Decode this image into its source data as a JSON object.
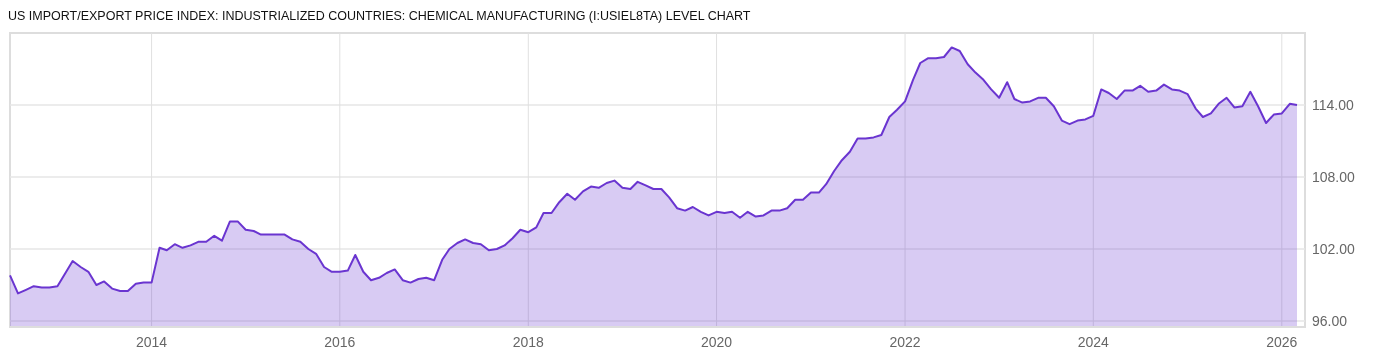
{
  "chart_data": {
    "type": "area",
    "title": "US IMPORT/EXPORT PRICE INDEX: INDUSTRIALIZED COUNTRIES: CHEMICAL MANUFACTURING (I:USIEL8TA) LEVEL CHART",
    "x": [
      "2012-07",
      "2012-08",
      "2012-09",
      "2012-10",
      "2012-11",
      "2012-12",
      "2013-01",
      "2013-02",
      "2013-03",
      "2013-04",
      "2013-05",
      "2013-06",
      "2013-07",
      "2013-08",
      "2013-09",
      "2013-10",
      "2013-11",
      "2013-12",
      "2014-01",
      "2014-02",
      "2014-03",
      "2014-04",
      "2014-05",
      "2014-06",
      "2014-07",
      "2014-08",
      "2014-09",
      "2014-10",
      "2014-11",
      "2014-12",
      "2015-01",
      "2015-02",
      "2015-03",
      "2015-04",
      "2015-05",
      "2015-06",
      "2015-07",
      "2015-08",
      "2015-09",
      "2015-10",
      "2015-11",
      "2015-12",
      "2016-01",
      "2016-02",
      "2016-03",
      "2016-04",
      "2016-05",
      "2016-06",
      "2016-07",
      "2016-08",
      "2016-09",
      "2016-10",
      "2016-11",
      "2016-12",
      "2017-01",
      "2017-02",
      "2017-03",
      "2017-04",
      "2017-05",
      "2017-06",
      "2017-07",
      "2017-08",
      "2017-09",
      "2017-10",
      "2017-11",
      "2017-12",
      "2018-01",
      "2018-02",
      "2018-03",
      "2018-04",
      "2018-05",
      "2018-06",
      "2018-07",
      "2018-08",
      "2018-09",
      "2018-10",
      "2018-11",
      "2018-12",
      "2019-01",
      "2019-02",
      "2019-03",
      "2019-04",
      "2019-05",
      "2019-06",
      "2019-07",
      "2019-08",
      "2019-09",
      "2019-10",
      "2019-11",
      "2019-12",
      "2020-01",
      "2020-02",
      "2020-03",
      "2020-04",
      "2020-05",
      "2020-06",
      "2020-07",
      "2020-08",
      "2020-09",
      "2020-10",
      "2020-11",
      "2020-12",
      "2021-01",
      "2021-02",
      "2021-03",
      "2021-04",
      "2021-05",
      "2021-06",
      "2021-07",
      "2021-08",
      "2021-09",
      "2021-10",
      "2021-11",
      "2021-12",
      "2022-01",
      "2022-02",
      "2022-03",
      "2022-04",
      "2022-05",
      "2022-06",
      "2022-07",
      "2022-08",
      "2022-09",
      "2022-10",
      "2022-11",
      "2022-12",
      "2023-01",
      "2023-02",
      "2023-03",
      "2023-04",
      "2023-05",
      "2023-06",
      "2023-07",
      "2023-08",
      "2023-09",
      "2023-10",
      "2023-11",
      "2023-12",
      "2024-01",
      "2024-02",
      "2024-03",
      "2024-04",
      "2024-05",
      "2024-06",
      "2024-07",
      "2024-08",
      "2024-09",
      "2024-10",
      "2024-11",
      "2024-12",
      "2025-01",
      "2025-02",
      "2025-03",
      "2025-04",
      "2025-05",
      "2025-06",
      "2025-07",
      "2025-08",
      "2025-09",
      "2025-10",
      "2025-11",
      "2025-12",
      "2026-01",
      "2026-02",
      "2026-03"
    ],
    "series": [
      {
        "color": "#6a35d0",
        "values": [
          99.8,
          98.3,
          98.6,
          98.9,
          98.8,
          98.8,
          98.9,
          100.0,
          101.0,
          100.5,
          100.1,
          99.0,
          99.3,
          98.7,
          98.5,
          98.5,
          99.1,
          99.2,
          99.2,
          102.1,
          101.9,
          102.4,
          102.1,
          102.3,
          102.6,
          102.6,
          103.1,
          102.7,
          104.3,
          104.3,
          103.6,
          103.5,
          103.2,
          103.2,
          103.2,
          103.2,
          102.8,
          102.6,
          102.0,
          101.6,
          100.5,
          100.1,
          100.1,
          100.2,
          101.5,
          100.1,
          99.4,
          99.6,
          100.0,
          100.3,
          99.4,
          99.2,
          99.5,
          99.6,
          99.4,
          101.1,
          102.0,
          102.5,
          102.8,
          102.5,
          102.4,
          101.9,
          102.0,
          102.3,
          102.9,
          103.6,
          103.4,
          103.8,
          105.0,
          105.0,
          105.9,
          106.6,
          106.1,
          106.8,
          107.2,
          107.1,
          107.5,
          107.7,
          107.1,
          107.0,
          107.6,
          107.3,
          107.0,
          107.0,
          106.3,
          105.4,
          105.2,
          105.5,
          105.1,
          104.8,
          105.1,
          105.0,
          105.1,
          104.6,
          105.1,
          104.7,
          104.8,
          105.2,
          105.2,
          105.4,
          106.1,
          106.1,
          106.7,
          106.7,
          107.4,
          108.5,
          109.4,
          110.1,
          111.2,
          111.2,
          111.3,
          111.5,
          113.0,
          113.6,
          114.3,
          116.1,
          117.5,
          117.9,
          117.9,
          118.0,
          118.8,
          118.5,
          117.4,
          116.7,
          116.1,
          115.3,
          114.6,
          115.9,
          114.5,
          114.2,
          114.3,
          114.6,
          114.6,
          113.9,
          112.7,
          112.4,
          112.7,
          112.8,
          113.1,
          115.3,
          115.0,
          114.5,
          115.2,
          115.2,
          115.6,
          115.1,
          115.2,
          115.7,
          115.3,
          115.2,
          114.9,
          113.7,
          113.0,
          113.3,
          114.1,
          114.6,
          113.8,
          113.9,
          115.1,
          113.9,
          112.5,
          113.2,
          113.3,
          114.1,
          114.0
        ]
      }
    ],
    "xlim": [
      "2012-07",
      "2026-04"
    ],
    "ylim": [
      95.5,
      120
    ],
    "xticks": [
      "2014",
      "2016",
      "2018",
      "2020",
      "2022",
      "2024",
      "2026"
    ],
    "yticks": [
      {
        "value": 96,
        "label": "96.00"
      },
      {
        "value": 102,
        "label": "102.00"
      },
      {
        "value": 108,
        "label": "108.00"
      },
      {
        "value": 114,
        "label": "114.00"
      }
    ],
    "grid": true
  }
}
